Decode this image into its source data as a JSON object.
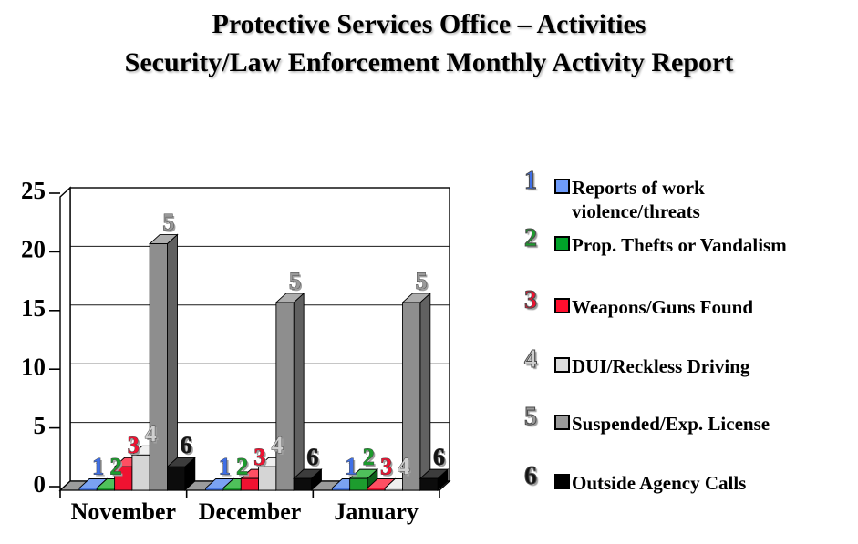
{
  "title": {
    "line1": "Protective Services Office – Activities",
    "line2": "Security/Law Enforcement Monthly Activity Report"
  },
  "chart_data": {
    "type": "bar",
    "style": "3d-grouped-columns",
    "categories": [
      "November",
      "December",
      "January"
    ],
    "series": [
      {
        "number": "1",
        "name": "Reports of work violence/threats",
        "values": [
          0,
          0,
          0
        ],
        "colors": {
          "front": "#4a79e3",
          "top": "#7aa2f2",
          "side": "#2a4c9b",
          "swatch": "#6e9bfa",
          "number": "#3f6fe6"
        }
      },
      {
        "number": "2",
        "name": "Prop. Thefts or Vandalism",
        "values": [
          0,
          0,
          1
        ],
        "colors": {
          "front": "#1d9c2e",
          "top": "#4fc15b",
          "side": "#0d5f1a",
          "swatch": "#00a329",
          "number": "#1d9c2e"
        }
      },
      {
        "number": "3",
        "name": "Weapons/Guns Found",
        "values": [
          2,
          1,
          0
        ],
        "colors": {
          "front": "#f01231",
          "top": "#ff4f63",
          "side": "#8e0a1c",
          "swatch": "#ff0f2e",
          "number": "#f01231"
        }
      },
      {
        "number": "4",
        "name": "DUI/Reckless Driving",
        "values": [
          3,
          2,
          0
        ],
        "colors": {
          "front": "#d5d5d5",
          "top": "#efefef",
          "side": "#a5a5a5",
          "swatch": "#dcdcdc",
          "number": "#cfcfcf"
        }
      },
      {
        "number": "5",
        "name": "Suspended/Exp. License",
        "values": [
          21,
          16,
          16
        ],
        "colors": {
          "front": "#8e8e8e",
          "top": "#aeaeae",
          "side": "#616161",
          "swatch": "#9a9a9a",
          "number": "#9a9a9a"
        }
      },
      {
        "number": "6",
        "name": "Outside Agency Calls",
        "values": [
          2,
          1,
          1
        ],
        "colors": {
          "front": "#0c0c0c",
          "top": "#3c3c3c",
          "side": "#000000",
          "swatch": "#000000",
          "number": "#151515"
        }
      }
    ],
    "title": "",
    "xlabel": "",
    "ylabel": "",
    "ylim": [
      0,
      25
    ],
    "yticks": [
      0,
      5,
      10,
      15,
      20,
      25
    ],
    "grid": true,
    "legend_position": "right"
  },
  "legend": {
    "items": [
      {
        "number": "1",
        "label": "Reports of work\nviolence/threats"
      },
      {
        "number": "2",
        "label": "Prop. Thefts or Vandalism"
      },
      {
        "number": "3",
        "label": "Weapons/Guns Found"
      },
      {
        "number": "4",
        "label": "DUI/Reckless Driving"
      },
      {
        "number": "5",
        "label": "Suspended/Exp. License"
      },
      {
        "number": "6",
        "label": "Outside Agency Calls"
      }
    ]
  }
}
